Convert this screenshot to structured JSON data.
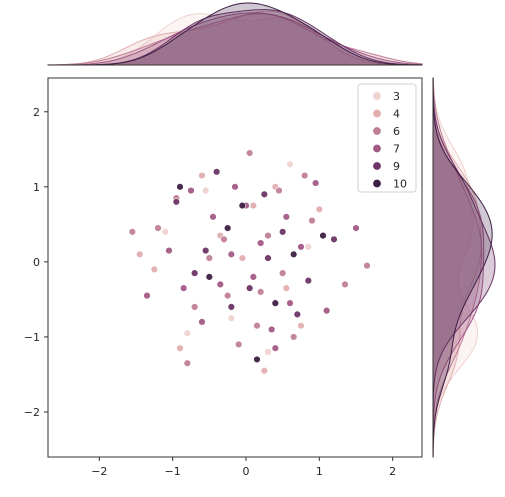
{
  "chart_data": {
    "type": "scatter",
    "title": "",
    "xlabel": "",
    "ylabel": "",
    "xlim": [
      -2.7,
      2.4
    ],
    "ylim": [
      -2.6,
      2.45
    ],
    "x_ticks": [
      -2,
      -1,
      0,
      1,
      2
    ],
    "y_ticks": [
      -2,
      -1,
      0,
      1,
      2
    ],
    "x_tick_labels": [
      "−2",
      "−1",
      "0",
      "1",
      "2"
    ],
    "y_tick_labels": [
      "−2",
      "−1",
      "0",
      "1",
      "2"
    ],
    "grid": false,
    "marginals": "kde",
    "legend": {
      "placement": "upper-right",
      "entries": [
        {
          "label": "3",
          "color": "#efd2d0"
        },
        {
          "label": "4",
          "color": "#e2aeb0"
        },
        {
          "label": "6",
          "color": "#c07f97"
        },
        {
          "label": "7",
          "color": "#a35a86"
        },
        {
          "label": "9",
          "color": "#6b3566"
        },
        {
          "label": "10",
          "color": "#3e1f46"
        }
      ]
    },
    "series": [
      {
        "hue": "3",
        "x": [
          -0.55,
          0.3,
          -1.1,
          0.85,
          -0.2,
          0.6,
          -0.8
        ],
        "y": [
          0.95,
          -1.2,
          0.4,
          0.2,
          -0.75,
          1.3,
          -0.95
        ]
      },
      {
        "hue": "4",
        "x": [
          -0.9,
          0.1,
          0.55,
          -0.35,
          1.0,
          -1.25,
          0.25,
          -0.6,
          0.75,
          -0.05,
          0.4,
          -1.45
        ],
        "y": [
          -1.15,
          0.75,
          -0.35,
          0.35,
          0.7,
          -0.1,
          -1.45,
          1.15,
          -0.85,
          0.05,
          1.0,
          0.1
        ]
      },
      {
        "hue": "6",
        "x": [
          -0.3,
          0.2,
          -0.7,
          0.9,
          -1.2,
          0.45,
          -0.1,
          1.35,
          -0.95,
          0.65,
          -0.5,
          0.05,
          0.3,
          -1.55,
          1.65,
          -0.25,
          0.8,
          -0.8,
          0.15,
          0.5
        ],
        "y": [
          0.3,
          -0.4,
          -0.6,
          0.55,
          0.45,
          0.95,
          -1.1,
          -0.3,
          0.85,
          -1.0,
          0.05,
          1.45,
          0.35,
          0.4,
          -0.05,
          -0.45,
          1.15,
          -1.35,
          -0.85,
          -0.15
        ]
      },
      {
        "hue": "7",
        "x": [
          0.1,
          -0.45,
          0.75,
          -0.85,
          0.35,
          -0.15,
          1.1,
          -1.05,
          0.55,
          -0.6,
          0.95,
          0.2,
          -0.35,
          1.5,
          -1.35,
          0.0,
          0.6,
          -0.75,
          0.4,
          -0.2
        ],
        "y": [
          -0.2,
          0.6,
          0.2,
          -0.35,
          -0.9,
          1.0,
          -0.65,
          0.15,
          0.6,
          -0.8,
          1.05,
          0.25,
          -0.3,
          0.45,
          -0.45,
          0.75,
          -0.55,
          0.95,
          -1.15,
          0.1
        ]
      },
      {
        "hue": "9",
        "x": [
          -0.55,
          0.25,
          0.85,
          -0.2,
          0.5,
          -0.95,
          0.05,
          1.2,
          -0.4,
          0.7,
          -0.7,
          0.3
        ],
        "y": [
          0.15,
          0.9,
          -0.25,
          -0.6,
          0.4,
          0.8,
          -0.35,
          0.3,
          1.2,
          -0.7,
          -0.15,
          0.05
        ]
      },
      {
        "hue": "10",
        "x": [
          -0.25,
          0.4,
          -0.9,
          0.65,
          0.15,
          -0.5,
          1.05,
          -0.05
        ],
        "y": [
          0.45,
          -0.55,
          1.0,
          0.1,
          -1.3,
          -0.2,
          0.35,
          0.75
        ]
      }
    ]
  }
}
